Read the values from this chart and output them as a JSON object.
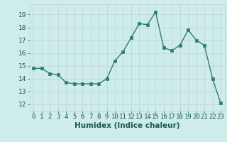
{
  "x": [
    0,
    1,
    2,
    3,
    4,
    5,
    6,
    7,
    8,
    9,
    10,
    11,
    12,
    13,
    14,
    15,
    16,
    17,
    18,
    19,
    20,
    21,
    22,
    23
  ],
  "y": [
    14.8,
    14.8,
    14.4,
    14.3,
    13.7,
    13.6,
    13.6,
    13.6,
    13.6,
    14.0,
    15.4,
    16.1,
    17.2,
    18.3,
    18.2,
    19.2,
    16.4,
    16.2,
    16.6,
    17.8,
    17.0,
    16.6,
    14.0,
    12.1
  ],
  "line_color": "#2d7d6e",
  "marker_color": "#2d7d6e",
  "bg_color": "#cdecea",
  "grid_color": "#c0d8d5",
  "xlabel": "Humidex (Indice chaleur)",
  "ylim": [
    11.5,
    19.8
  ],
  "yticks": [
    12,
    13,
    14,
    15,
    16,
    17,
    18,
    19
  ],
  "xticks": [
    0,
    1,
    2,
    3,
    4,
    5,
    6,
    7,
    8,
    9,
    10,
    11,
    12,
    13,
    14,
    15,
    16,
    17,
    18,
    19,
    20,
    21,
    22,
    23
  ],
  "xtick_labels": [
    "0",
    "1",
    "2",
    "3",
    "4",
    "5",
    "6",
    "7",
    "8",
    "9",
    "10",
    "11",
    "12",
    "13",
    "14",
    "15",
    "16",
    "17",
    "18",
    "19",
    "20",
    "21",
    "22",
    "23"
  ],
  "axis_fontsize": 6.5,
  "xlabel_fontsize": 7.5
}
